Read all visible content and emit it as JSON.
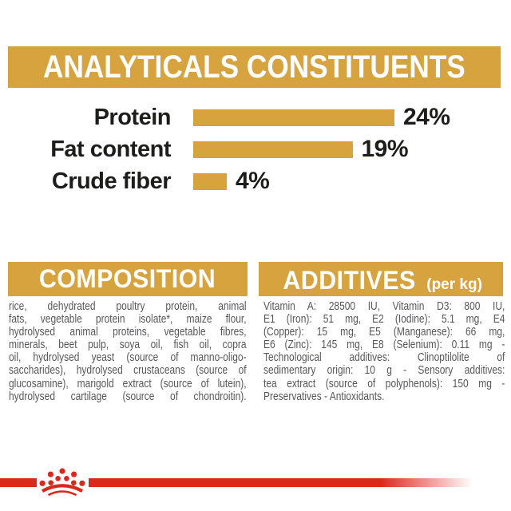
{
  "colors": {
    "gold": "#D7A33F",
    "red": "#DA291C",
    "banner_text": "#FFFFFF",
    "label_text": "#1D1D1B",
    "body_text": "#57575B"
  },
  "header": {
    "title": "ANALYTICALS CONSTITUENTS"
  },
  "chart_data": {
    "type": "bar",
    "orientation": "horizontal",
    "title": "ANALYTICALS CONSTITUENTS",
    "categories": [
      "Protein",
      "Fat content",
      "Crude fiber"
    ],
    "values": [
      24,
      19,
      4
    ],
    "value_labels": [
      "24%",
      "19%",
      "4%"
    ],
    "unit": "%",
    "xlim": [
      0,
      24
    ],
    "bar_color": "#D7A33F",
    "grid": false,
    "legend": false
  },
  "composition": {
    "title": "COMPOSITION",
    "justify_last_line": true,
    "lines": [
      "rice, dehydrated poultry protein, animal",
      "fats, vegetable protein isolate*, maize flour,",
      "hydrolysed animal proteins, vegetable fibres,",
      "minerals, beet pulp, soya oil, fish oil, copra",
      "oil, hydrolysed yeast (source of manno-oligo-",
      "saccharides), hydrolysed crustaceans (source of",
      "glucosamine), marigold extract (source of lutein),",
      "hydrolysed cartilage (source of chondroitin)."
    ]
  },
  "additives": {
    "title": "ADDITIVES",
    "title_suffix": "(per kg)",
    "justify_last_line": false,
    "lines": [
      "Vitamin A: 28500 IU, Vitamin D3: 800 IU,",
      "E1 (Iron): 51 mg, E2 (Iodine): 5.1 mg, E4",
      "(Copper): 15 mg, E5 (Manganese): 66 mg,",
      "E6 (Zinc): 145 mg, E8 (Selenium): 0.11 mg -",
      "Technological additives: Clinoptilolite of",
      "sedimentary origin: 10 g - Sensory additives:",
      "tea extract (source of polyphenols): 150 mg -",
      "Preservatives - Antioxidants."
    ]
  },
  "footer": {
    "icon": "royal-canin-crown-icon"
  }
}
